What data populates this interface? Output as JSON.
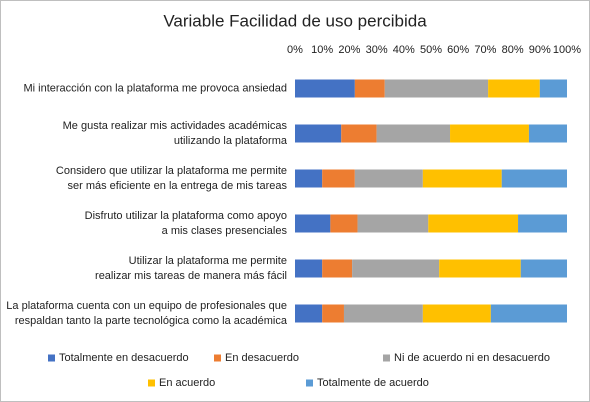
{
  "chart_data": {
    "type": "stacked_bar_horizontal",
    "title": "Variable Facilidad de uso percibida",
    "categories": [
      "Mi interacción con la plataforma me provoca ansiedad",
      "Me gusta realizar mis actividades académicas\nutilizando la plataforma",
      "Considero que utilizar la plataforma me permite\nser más eficiente en la entrega de mis tareas",
      "Disfruto utilizar la plataforma como apoyo\na mis clases presenciales",
      "Utilizar la plataforma me permite\nrealizar mis tareas de manera más fácil",
      "La plataforma cuenta con un equipo de profesionales que\nrespaldan tanto la parte tecnológica como la académica"
    ],
    "series": [
      {
        "name": "Totalmente en desacuerdo",
        "color": "#4472c4",
        "values": [
          22,
          17,
          10,
          13,
          10,
          10
        ]
      },
      {
        "name": "En desacuerdo",
        "color": "#ed7d31",
        "values": [
          11,
          13,
          12,
          10,
          11,
          8
        ]
      },
      {
        "name": "Ni de acuerdo ni en desacuerdo",
        "color": "#a5a5a5",
        "values": [
          38,
          27,
          25,
          26,
          32,
          29
        ]
      },
      {
        "name": "En acuerdo",
        "color": "#ffc000",
        "values": [
          19,
          29,
          29,
          33,
          30,
          25
        ]
      },
      {
        "name": "Totalmente de acuerdo",
        "color": "#5b9bd5",
        "values": [
          10,
          14,
          24,
          18,
          17,
          28
        ]
      }
    ],
    "xlim": [
      0,
      100
    ],
    "xticks": [
      {
        "value": 0,
        "label": "0%"
      },
      {
        "value": 10,
        "label": "10%"
      },
      {
        "value": 20,
        "label": "20%"
      },
      {
        "value": 30,
        "label": "30%"
      },
      {
        "value": 40,
        "label": "40%"
      },
      {
        "value": 50,
        "label": "50%"
      },
      {
        "value": 60,
        "label": "60%"
      },
      {
        "value": 70,
        "label": "70%"
      },
      {
        "value": 80,
        "label": "80%"
      },
      {
        "value": 90,
        "label": "90%"
      },
      {
        "value": 100,
        "label": "100%"
      }
    ],
    "grid": false,
    "legend": "bottom"
  }
}
